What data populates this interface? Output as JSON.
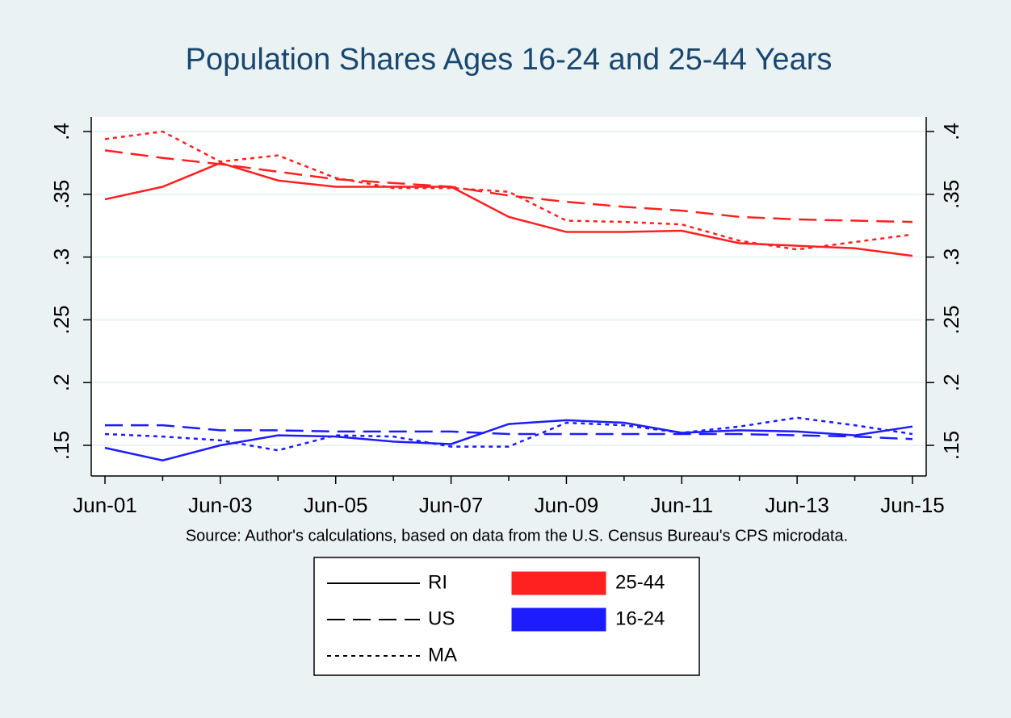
{
  "chart_data": {
    "type": "line",
    "title": "Population Shares Ages 16-24 and 25-44 Years",
    "note": "Source: Author's calculations, based on data from the U.S. Census Bureau's CPS microdata.",
    "categories": [
      "Jun-01",
      null,
      "Jun-03",
      null,
      "Jun-05",
      null,
      "Jun-07",
      null,
      "Jun-09",
      null,
      "Jun-11",
      null,
      "Jun-13",
      null,
      "Jun-15"
    ],
    "series": [
      {
        "color": "#ff2020",
        "dash": "solid",
        "values": [
          0.346,
          0.356,
          0.375,
          0.361,
          0.356,
          0.356,
          0.356,
          0.332,
          0.32,
          0.32,
          0.321,
          0.311,
          0.309,
          0.307,
          0.301
        ]
      },
      {
        "color": "#ff2020",
        "dash": "dashed",
        "values": [
          0.385,
          0.379,
          0.374,
          0.368,
          0.362,
          0.359,
          0.356,
          0.349,
          0.344,
          0.34,
          0.337,
          0.332,
          0.33,
          0.329,
          0.328
        ]
      },
      {
        "color": "#ff2020",
        "dash": "dotted",
        "values": [
          0.394,
          0.4,
          0.376,
          0.381,
          0.363,
          0.355,
          0.355,
          0.352,
          0.329,
          0.328,
          0.326,
          0.313,
          0.306,
          0.312,
          0.318
        ]
      },
      {
        "color": "#1c1cff",
        "dash": "solid",
        "values": [
          0.148,
          0.138,
          0.15,
          0.158,
          0.157,
          0.153,
          0.151,
          0.167,
          0.17,
          0.168,
          0.16,
          0.162,
          0.161,
          0.158,
          0.165
        ]
      },
      {
        "color": "#1c1cff",
        "dash": "dashed",
        "values": [
          0.166,
          0.166,
          0.162,
          0.162,
          0.161,
          0.161,
          0.161,
          0.159,
          0.159,
          0.159,
          0.159,
          0.159,
          0.158,
          0.157,
          0.155
        ]
      },
      {
        "color": "#1c1cff",
        "dash": "dotted",
        "values": [
          0.159,
          0.157,
          0.154,
          0.146,
          0.158,
          0.157,
          0.149,
          0.149,
          0.168,
          0.166,
          0.16,
          0.165,
          0.172,
          0.166,
          0.159
        ]
      }
    ],
    "legend": {
      "styles": [
        {
          "name": "RI",
          "dash": "solid"
        },
        {
          "name": "US",
          "dash": "dashed"
        },
        {
          "name": "MA",
          "dash": "dotted"
        }
      ],
      "groups": [
        {
          "name": "25-44",
          "color": "#ff2020"
        },
        {
          "name": "16-24",
          "color": "#1c1cff"
        }
      ]
    },
    "ylim": [
      0.1256,
      0.4116
    ],
    "yticks": [
      {
        "value": 0.15,
        "label": ".15"
      },
      {
        "value": 0.2,
        "label": ".2"
      },
      {
        "value": 0.25,
        "label": ".25"
      },
      {
        "value": 0.3,
        "label": ".3"
      },
      {
        "value": 0.35,
        "label": ".35"
      },
      {
        "value": 0.4,
        "label": ".4"
      }
    ],
    "grid": true
  }
}
